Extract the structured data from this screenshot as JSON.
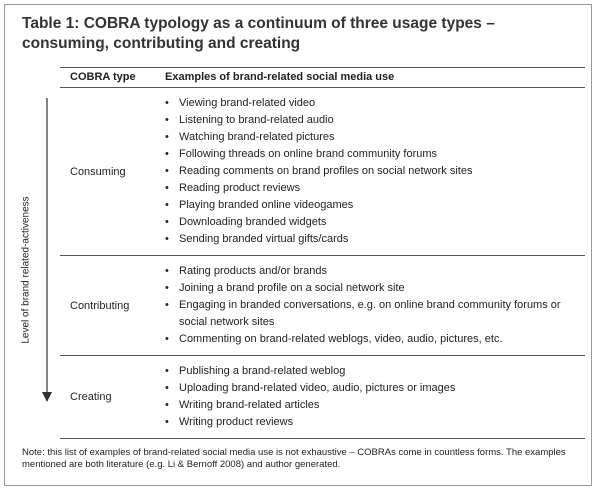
{
  "title": "Table 1: COBRA typology as a continuum of three usage types – consuming, contributing and creating",
  "table": {
    "header": [
      "COBRA type",
      "Examples of brand-related social media use"
    ],
    "axis_label": "Level of brand related-activeness",
    "rows": [
      {
        "type": "Consuming",
        "examples": [
          "Viewing brand-related video",
          "Listening to brand-related audio",
          "Watching brand-related pictures",
          "Following threads on online brand community forums",
          "Reading comments on brand profiles on social network sites",
          "Reading product reviews",
          "Playing branded online videogames",
          "Downloading branded widgets",
          "Sending branded virtual gifts/cards"
        ]
      },
      {
        "type": "Contributing",
        "examples": [
          "Rating products and/or brands",
          "Joining a brand profile on a social network site",
          "Engaging in branded conversations, e.g. on online brand community forums or social network sites",
          "Commenting on brand-related weblogs, video, audio, pictures, etc."
        ]
      },
      {
        "type": "Creating",
        "examples": [
          "Publishing a brand-related weblog",
          "Uploading brand-related video, audio, pictures or images",
          "Writing brand-related articles",
          "Writing product reviews"
        ]
      }
    ]
  },
  "note": "Note: this list of examples of brand-related social media use is not exhaustive – COBRAs come in countless forms. The examples mentioned are both literature (e.g. Li & Bernoff 2008) and author generated."
}
